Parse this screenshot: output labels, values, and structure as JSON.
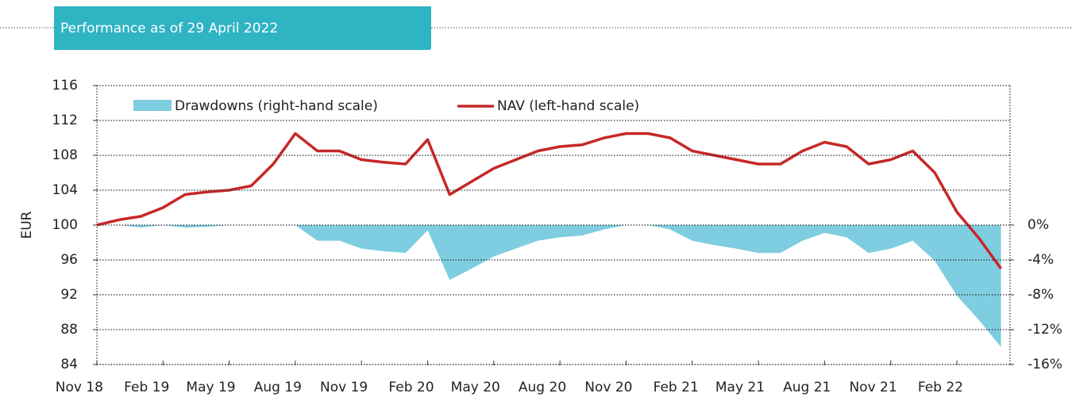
{
  "header": {
    "title": "Performance as of 29 April 2022"
  },
  "chart_data": {
    "type": "line",
    "ylabel": "EUR",
    "x": [
      "Nov 18",
      "Dec 18",
      "Jan 19",
      "Feb 19",
      "Mar 19",
      "Apr 19",
      "May 19",
      "Jun 19",
      "Jul 19",
      "Aug 19",
      "Sep 19",
      "Oct 19",
      "Nov 19",
      "Dec 19",
      "Jan 20",
      "Feb 20",
      "Mar 20",
      "Apr 20",
      "May 20",
      "Jun 20",
      "Jul 20",
      "Aug 20",
      "Sep 20",
      "Oct 20",
      "Nov 20",
      "Dec 20",
      "Jan 21",
      "Feb 21",
      "Mar 21",
      "Apr 21",
      "May 21",
      "Jun 21",
      "Jul 21",
      "Aug 21",
      "Sep 21",
      "Oct 21",
      "Nov 21",
      "Dec 21",
      "Jan 22",
      "Feb 22",
      "Mar 22",
      "Apr 22"
    ],
    "xticks": [
      "Nov 18",
      "Feb 19",
      "May 19",
      "Aug 19",
      "Nov 19",
      "Feb 20",
      "May 20",
      "Aug 20",
      "Nov 20",
      "Feb 21",
      "May 21",
      "Aug 21",
      "Nov 21",
      "Feb 22"
    ],
    "ylim": [
      84,
      116
    ],
    "yticks": [
      84,
      88,
      92,
      96,
      100,
      104,
      108,
      112,
      116
    ],
    "y2lim": [
      -16,
      16
    ],
    "y2ticks": [
      {
        "value": 0,
        "label": "0%"
      },
      {
        "value": -4,
        "label": "-4%"
      },
      {
        "value": -8,
        "label": "-8%"
      },
      {
        "value": -12,
        "label": "-12%"
      },
      {
        "value": -16,
        "label": "-16%"
      }
    ],
    "grid": true,
    "series": [
      {
        "name": "Drawdowns (right-hand scale)",
        "type": "area",
        "axis": "y2",
        "color": "#7ecde0",
        "values": [
          0,
          0,
          -0.3,
          0,
          -0.3,
          -0.2,
          0,
          0,
          0,
          0,
          -1.8,
          -1.8,
          -2.7,
          -3,
          -3.2,
          -0.6,
          -6.3,
          -5,
          -3.6,
          -2.7,
          -1.8,
          -1.4,
          -1.2,
          -0.5,
          0,
          0,
          -0.5,
          -1.8,
          -2.3,
          -2.7,
          -3.2,
          -3.2,
          -1.8,
          -0.9,
          -1.4,
          -3.2,
          -2.7,
          -1.8,
          -4.1,
          -8.1,
          -10.9,
          -14
        ]
      },
      {
        "name": "NAV (left-hand scale)",
        "type": "line",
        "color": "#c62828",
        "values": [
          100,
          100.6,
          101,
          102,
          103.5,
          103.8,
          104,
          104.5,
          107,
          110.5,
          108.5,
          108.5,
          107.5,
          107.2,
          107,
          109.8,
          103.5,
          105,
          106.5,
          107.5,
          108.5,
          109,
          109.2,
          110,
          110.5,
          110.5,
          110,
          108.5,
          108,
          107.5,
          107,
          107,
          108.5,
          109.5,
          109,
          107,
          107.5,
          108.5,
          106,
          101.5,
          98.5,
          95
        ]
      }
    ]
  }
}
